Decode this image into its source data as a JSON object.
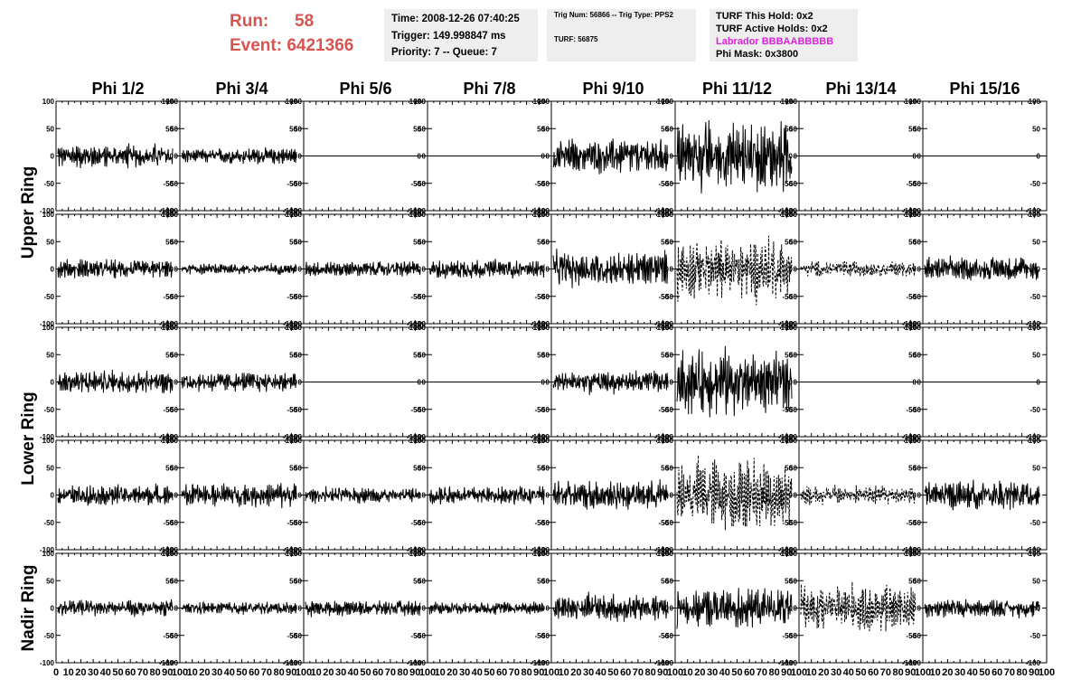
{
  "header": {
    "run_label": "Run:",
    "run_value": "58",
    "event_label": "Event:",
    "event_value": "6421366",
    "time": "Time: 2008-12-26 07:40:25",
    "trigger": "Trigger: 149.998847 ms",
    "priority": "Priority: 7 -- Queue: 7",
    "trig_num": "Trig Num: 56866 -- Trig Type: PPS2",
    "turf": "TURF: 56875",
    "turf_hold": "TURF This Hold: 0x2",
    "turf_active": "TURF Active Holds: 0x2",
    "labrador": "Labrador BBBAABBBBB",
    "phi_mask": "Phi Mask: 0x3800",
    "labrador_color": "#e020e0",
    "run_color": "#d9534f"
  },
  "chart_data": {
    "type": "line",
    "columns": [
      "Phi 1/2",
      "Phi 3/4",
      "Phi 5/6",
      "Phi 7/8",
      "Phi 9/10",
      "Phi 11/12",
      "Phi 13/14",
      "Phi 15/16"
    ],
    "ring_labels": [
      "Upper Ring",
      "Lower Ring",
      "Nadir Ring"
    ],
    "ylim": [
      -100,
      100
    ],
    "y_ticks": [
      "100",
      "50",
      "0",
      "-50",
      "-100"
    ],
    "xlim": [
      0,
      100
    ],
    "x_tick_labels": [
      "0",
      "10",
      "20",
      "30",
      "40",
      "50",
      "60",
      "70",
      "80",
      "90",
      "100"
    ],
    "dashed_panels": [
      [
        1,
        5
      ],
      [
        1,
        6
      ],
      [
        3,
        5
      ],
      [
        3,
        6
      ],
      [
        4,
        6
      ]
    ],
    "amplitudes": [
      [
        15,
        10,
        0,
        0,
        22,
        45,
        0,
        0
      ],
      [
        12,
        7,
        10,
        12,
        22,
        40,
        10,
        15
      ],
      [
        15,
        12,
        0,
        0,
        15,
        40,
        0,
        0
      ],
      [
        13,
        15,
        10,
        12,
        18,
        45,
        12,
        18
      ],
      [
        10,
        8,
        10,
        8,
        18,
        25,
        30,
        12
      ]
    ]
  }
}
